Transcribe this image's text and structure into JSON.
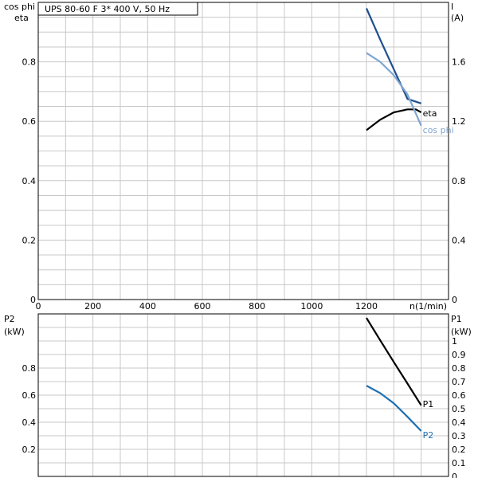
{
  "chart_data": [
    {
      "type": "line",
      "panel": "top",
      "title": "UPS 80-60 F    3* 400 V, 50 Hz",
      "xlabel": "n(1/min)",
      "xlim": [
        0,
        1500
      ],
      "x_ticks": [
        "0",
        "200",
        "400",
        "600",
        "800",
        "1000",
        "1200"
      ],
      "ylabel_left": [
        "cos phi",
        "eta"
      ],
      "ylim_left": [
        0,
        1.0
      ],
      "y_ticks_left": [
        "0",
        "0.2",
        "0.4",
        "0.6",
        "0.8"
      ],
      "ylabel_right": [
        "I",
        "(A)"
      ],
      "ylim_right": [
        0,
        2.0
      ],
      "y_ticks_right": [
        "0",
        "0.4",
        "0.8",
        "1.2",
        "1.6"
      ],
      "grid": true,
      "series": [
        {
          "name": "",
          "axis": "right",
          "color": "#1f4f8f",
          "x": [
            1200,
            1250,
            1300,
            1350,
            1400
          ],
          "y": [
            1.96,
            1.75,
            1.55,
            1.35,
            1.32
          ]
        },
        {
          "name": "eta",
          "axis": "left",
          "color": "#000000",
          "x": [
            1200,
            1250,
            1300,
            1350,
            1380,
            1400
          ],
          "y": [
            0.57,
            0.605,
            0.63,
            0.64,
            0.64,
            0.63
          ]
        },
        {
          "name": "cos phi",
          "axis": "left",
          "color": "#7fa6d0",
          "x": [
            1200,
            1250,
            1300,
            1350,
            1400
          ],
          "y": [
            0.83,
            0.8,
            0.755,
            0.69,
            0.585
          ]
        }
      ]
    },
    {
      "type": "line",
      "panel": "bottom",
      "ylabel_left": [
        "P2",
        "(kW)"
      ],
      "ylim_left": [
        0.0,
        1.2
      ],
      "y_ticks_left": [
        "0.2",
        "0.4",
        "0.6",
        "0.8"
      ],
      "ylabel_right": [
        "P1",
        "(kW)"
      ],
      "ylim_right": [
        0.0,
        1.2
      ],
      "y_ticks_right": [
        "0",
        "0.1",
        "0.2",
        "0.3",
        "0.4",
        "0.5",
        "0.6",
        "0.7",
        "0.8",
        "0.9",
        "1"
      ],
      "grid": true,
      "series": [
        {
          "name": "P1",
          "axis": "right",
          "color": "#000000",
          "x": [
            1200,
            1250,
            1300,
            1350,
            1400
          ],
          "y": [
            1.17,
            1.005,
            0.845,
            0.685,
            0.525
          ]
        },
        {
          "name": "P2",
          "axis": "left",
          "color": "#1f6fb0",
          "x": [
            1200,
            1250,
            1300,
            1350,
            1400
          ],
          "y": [
            0.67,
            0.615,
            0.54,
            0.44,
            0.335
          ]
        }
      ]
    }
  ]
}
